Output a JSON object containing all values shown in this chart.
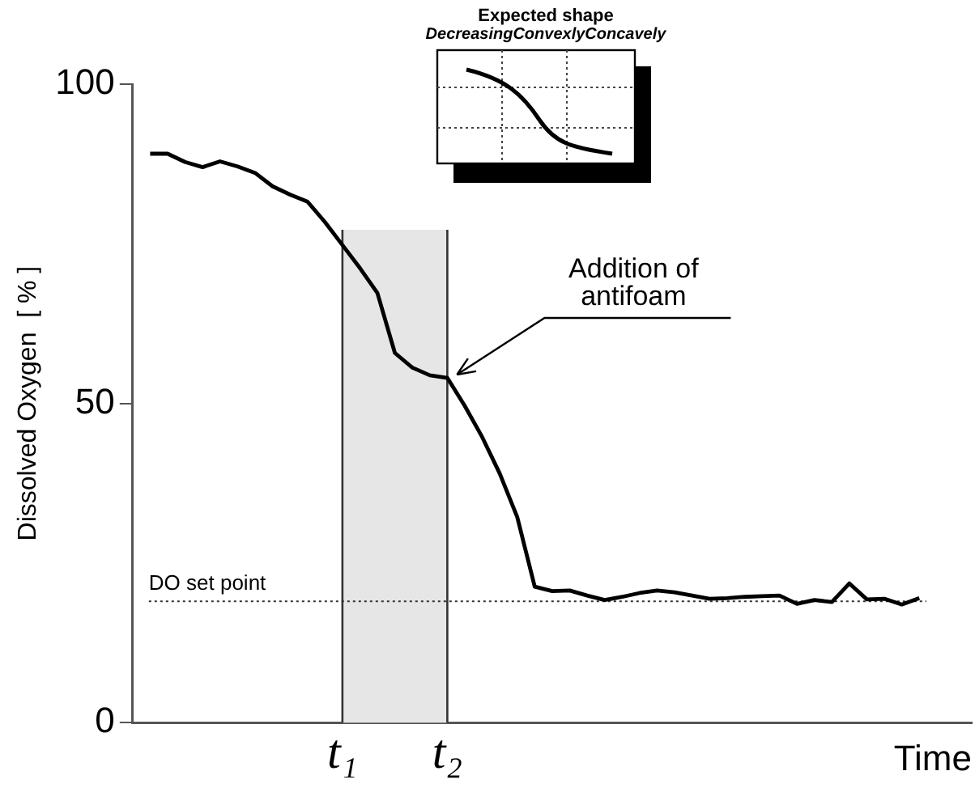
{
  "chart_data": {
    "type": "line",
    "xlabel": "Time",
    "ylabel": "Dissolved Oxygen  [ % ]",
    "categories": [
      null,
      null,
      null,
      null,
      null,
      null,
      null,
      null,
      null,
      null,
      null,
      null,
      "t₁",
      null,
      null,
      null,
      null,
      null,
      "t₂",
      null,
      null,
      null,
      null,
      null,
      null,
      null,
      null,
      null,
      null,
      null,
      null,
      null,
      null,
      null,
      null,
      null,
      null,
      null,
      null,
      null,
      null,
      null,
      null,
      null,
      null,
      null,
      null,
      null,
      null
    ],
    "ylim": [
      0,
      100
    ],
    "yticks": [
      0,
      50,
      100
    ],
    "grid": false,
    "legend": false,
    "marker": "none",
    "line_style": "solid",
    "series": [
      {
        "color": "#000000",
        "values": [
          null,
          89.1,
          89.1,
          87.8,
          87,
          87.9,
          87.1,
          86.1,
          84,
          82.7,
          81.6,
          78.4,
          74.8,
          71.2,
          67.3,
          57.9,
          55.6,
          54.4,
          54,
          49.6,
          44.7,
          39,
          32.2,
          21.3,
          20.6,
          20.7,
          19.9,
          19.2,
          19.7,
          20.3,
          20.7,
          20.4,
          19.9,
          19.4,
          19.5,
          19.7,
          19.8,
          19.9,
          18.6,
          19.2,
          18.9,
          21.8,
          19.3,
          19.4,
          18.5,
          19.5,
          null,
          null,
          null
        ]
      }
    ],
    "ref_lines": [
      {
        "axis": "x",
        "value": "t₁",
        "color": "#333333",
        "line_style": "solid"
      },
      {
        "axis": "x",
        "value": "t₂",
        "color": "#333333",
        "line_style": "solid"
      },
      {
        "axis": "y",
        "value": 19,
        "label": "DO set point",
        "color": "#333333",
        "line_style": "dotted"
      }
    ],
    "bands": [
      {
        "axis": "x",
        "from": "t₁",
        "to": "t₂",
        "color": "#e6e6e6"
      }
    ],
    "annotations": [
      "Expected shape",
      "DecreasingConvexlyConcavely",
      {
        "text": "Addition of\nantifoam",
        "x": "t₂",
        "y": 54
      }
    ]
  }
}
